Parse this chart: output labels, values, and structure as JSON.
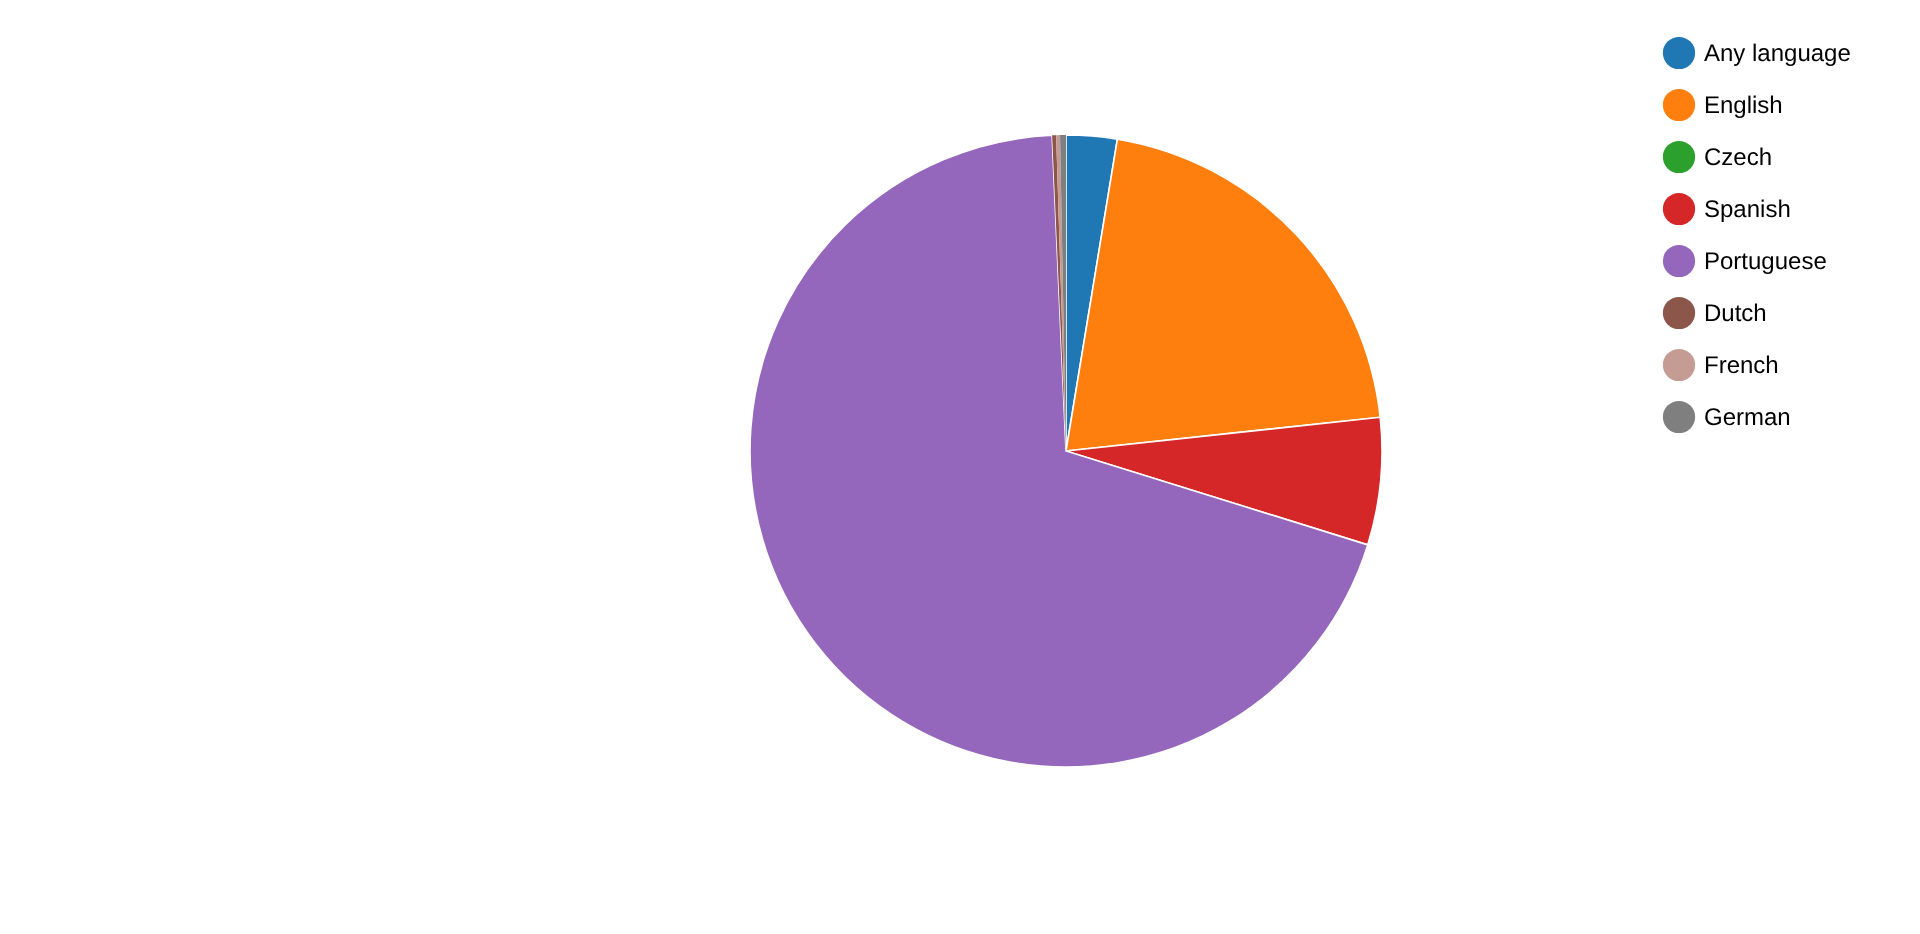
{
  "chart_data": {
    "type": "pie",
    "categories": [
      "Any language",
      "English",
      "Czech",
      "Spanish",
      "Portuguese",
      "Dutch",
      "French",
      "German"
    ],
    "values": [
      2.6,
      20.7,
      0,
      6.5,
      69.5,
      0.2,
      0.2,
      0.3
    ],
    "colors": [
      "#1f77b4",
      "#ff7f0e",
      "#2ca02c",
      "#d62728",
      "#9467bd",
      "#8c564b",
      "#c49c94",
      "#7f7f7f"
    ],
    "legend": "top right"
  }
}
